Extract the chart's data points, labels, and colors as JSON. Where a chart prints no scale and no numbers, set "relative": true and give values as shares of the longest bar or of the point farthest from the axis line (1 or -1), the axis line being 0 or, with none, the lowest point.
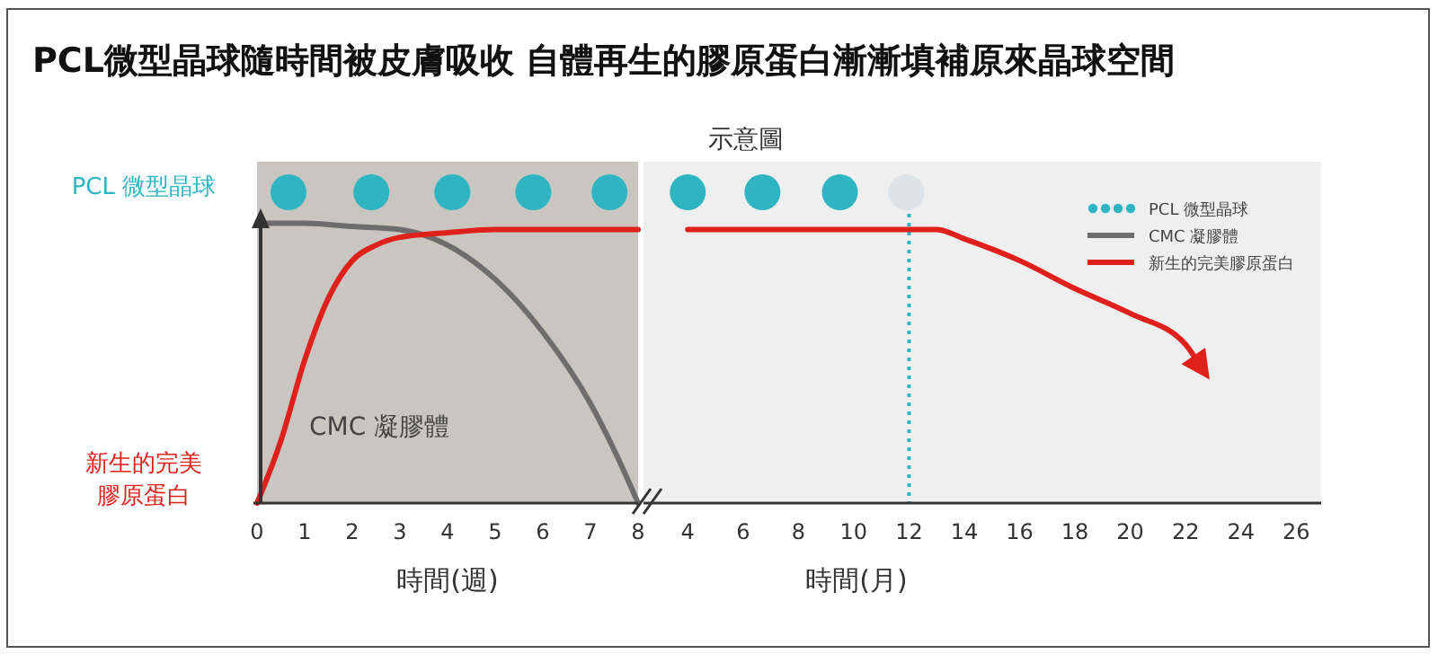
{
  "chart_data": [
    {
      "type": "line",
      "title": "PCL微型晶球隨時間被皮膚吸收 自體再生的膠原蛋白漸漸填補原來晶球空間",
      "xlabel": "時間(週)",
      "xlim": [
        0,
        8
      ],
      "xticks": [
        0,
        1,
        2,
        3,
        4,
        5,
        6,
        7,
        8
      ],
      "relative": true,
      "legend": false,
      "annotations": [
        "PCL 微型晶球",
        "新生的完美膠原蛋白",
        "CMC 凝膠體"
      ],
      "series": [
        {
          "type": "scatter",
          "marker": "circle",
          "color": "#2fb5c2",
          "x": [
            0.66,
            2.4,
            4.1,
            5.8,
            7.4
          ],
          "values": [
            1,
            1,
            1,
            1,
            1
          ]
        },
        {
          "color": "#6d6d6d",
          "x": [
            0,
            1,
            2,
            3,
            4,
            5,
            6,
            7,
            7.5,
            8
          ],
          "values": [
            0.9,
            0.9,
            0.89,
            0.88,
            0.83,
            0.72,
            0.55,
            0.32,
            0.17,
            0
          ]
        },
        {
          "color": "#e0201b",
          "x": [
            0,
            0.5,
            1,
            1.5,
            2,
            2.5,
            3,
            4,
            5,
            6,
            7,
            8
          ],
          "values": [
            0,
            0.2,
            0.46,
            0.66,
            0.78,
            0.83,
            0.855,
            0.87,
            0.88,
            0.88,
            0.88,
            0.88
          ]
        }
      ]
    },
    {
      "type": "line",
      "subtitle": "示意圖",
      "xlabel": "時間(月)",
      "xlim": [
        2.4,
        26.9
      ],
      "xticks": [
        4,
        6,
        8,
        10,
        12,
        14,
        16,
        18,
        20,
        22,
        24,
        26
      ],
      "relative": true,
      "legend": "top right",
      "ref_lines": [
        {
          "axis": "x",
          "value": 12,
          "color": "#2fb5c2",
          "line_style": "dotted"
        }
      ],
      "series": [
        {
          "name": "PCL 微型晶球",
          "type": "scatter",
          "marker": "circle",
          "color": "#2fb5c2",
          "colors": [
            "#2fb5c2",
            "#2fb5c2",
            "#2fb5c2",
            "#dde3e6"
          ],
          "x": [
            4,
            6.7,
            9.5,
            11.9
          ],
          "values": [
            1,
            1,
            1,
            1
          ]
        },
        {
          "name": "CMC 凝膠體",
          "color": "#6d6d6d"
        },
        {
          "name": "新生的完美膠原蛋白",
          "color": "#e0201b",
          "x": [
            4,
            6,
            8,
            10,
            12,
            13,
            14,
            16,
            18,
            20,
            22,
            22.5
          ],
          "values": [
            0.88,
            0.88,
            0.88,
            0.88,
            0.88,
            0.88,
            0.85,
            0.78,
            0.69,
            0.61,
            0.51,
            0.445
          ]
        }
      ]
    }
  ]
}
